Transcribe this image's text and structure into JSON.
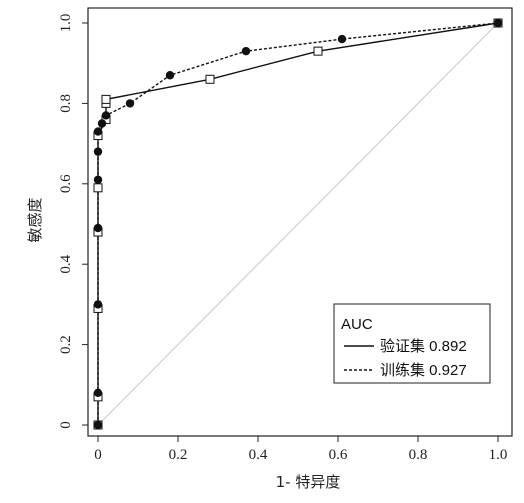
{
  "chart_data": {
    "type": "line",
    "xlabel": "1- 特异度",
    "ylabel": "敏感度",
    "xlim": [
      0,
      1
    ],
    "ylim": [
      0,
      1
    ],
    "x_ticks": [
      "0",
      "0.2",
      "0.4",
      "0.6",
      "0.8",
      "1.0"
    ],
    "y_ticks": [
      "0",
      "0.2",
      "0.4",
      "0.6",
      "0.8",
      "1.0"
    ],
    "grid": false,
    "legend": {
      "title": "AUC",
      "position": "bottom-right",
      "entries": [
        {
          "text": "验证集 0.892",
          "style": "solid"
        },
        {
          "text": "训练集 0.927",
          "style": "dashed"
        }
      ]
    },
    "reference_line": {
      "from": [
        0,
        0
      ],
      "to": [
        1,
        1
      ],
      "color": "#c8c8c8"
    },
    "series": [
      {
        "style": "solid",
        "marker": "open-square",
        "points": [
          [
            0,
            0
          ],
          [
            0,
            0.07
          ],
          [
            0,
            0.29
          ],
          [
            0,
            0.48
          ],
          [
            0,
            0.59
          ],
          [
            0,
            0.72
          ],
          [
            0.02,
            0.76
          ],
          [
            0.02,
            0.8
          ],
          [
            0.02,
            0.81
          ],
          [
            0.28,
            0.86
          ],
          [
            0.55,
            0.93
          ],
          [
            1.0,
            1.0
          ]
        ]
      },
      {
        "style": "dashed",
        "marker": "filled-circle",
        "points": [
          [
            0,
            0
          ],
          [
            0,
            0.08
          ],
          [
            0,
            0.3
          ],
          [
            0,
            0.49
          ],
          [
            0,
            0.61
          ],
          [
            0,
            0.68
          ],
          [
            0,
            0.73
          ],
          [
            0.01,
            0.75
          ],
          [
            0.02,
            0.77
          ],
          [
            0.08,
            0.8
          ],
          [
            0.18,
            0.87
          ],
          [
            0.37,
            0.93
          ],
          [
            0.61,
            0.96
          ],
          [
            1.0,
            1.0
          ]
        ]
      }
    ]
  }
}
